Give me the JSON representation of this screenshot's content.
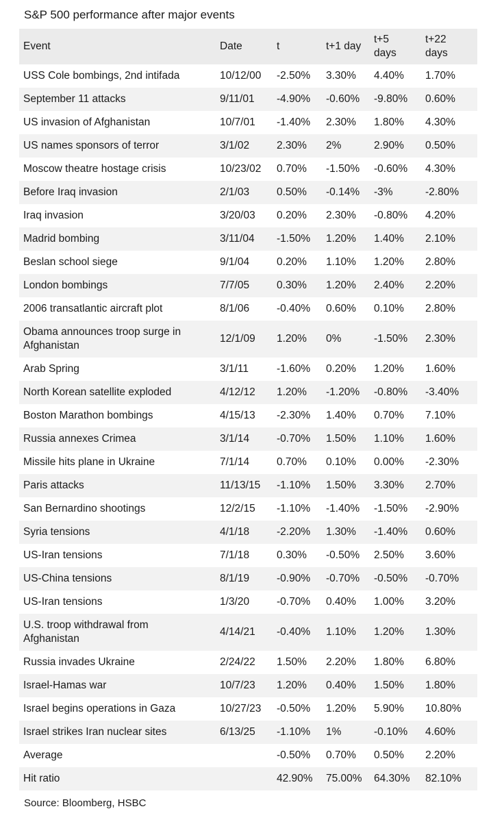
{
  "title": "S&P 500 performance after major events",
  "source_note": "Source: Bloomberg, HSBC",
  "colors": {
    "header_bg": "#ebebeb",
    "zebra_bg": "#f2f2f2",
    "row_bg": "#ffffff",
    "text": "#1a1a1a"
  },
  "chart_data": {
    "type": "table",
    "title": "S&P 500 performance after major events",
    "columns": [
      "Event",
      "Date",
      "t",
      "t+1 day",
      "t+5 days",
      "t+22 days"
    ],
    "rows": [
      [
        "USS Cole bombings, 2nd intifada",
        "10/12/00",
        "-2.50%",
        "3.30%",
        "4.40%",
        "1.70%"
      ],
      [
        "September 11 attacks",
        "9/11/01",
        "-4.90%",
        "-0.60%",
        "-9.80%",
        "0.60%"
      ],
      [
        "US invasion of Afghanistan",
        "10/7/01",
        "-1.40%",
        "2.30%",
        "1.80%",
        "4.30%"
      ],
      [
        "US names sponsors of terror",
        "3/1/02",
        "2.30%",
        "2%",
        "2.90%",
        "0.50%"
      ],
      [
        "Moscow theatre hostage crisis",
        "10/23/02",
        "0.70%",
        "-1.50%",
        "-0.60%",
        "4.30%"
      ],
      [
        "Before Iraq invasion",
        "2/1/03",
        "0.50%",
        "-0.14%",
        "-3%",
        "-2.80%"
      ],
      [
        "Iraq invasion",
        "3/20/03",
        "0.20%",
        "2.30%",
        "-0.80%",
        "4.20%"
      ],
      [
        "Madrid bombing",
        "3/11/04",
        "-1.50%",
        "1.20%",
        "1.40%",
        "2.10%"
      ],
      [
        "Beslan school siege",
        "9/1/04",
        "0.20%",
        "1.10%",
        "1.20%",
        "2.80%"
      ],
      [
        "London bombings",
        "7/7/05",
        "0.30%",
        "1.20%",
        "2.40%",
        "2.20%"
      ],
      [
        "2006 transatlantic aircraft plot",
        "8/1/06",
        "-0.40%",
        "0.60%",
        "0.10%",
        "2.80%"
      ],
      [
        "Obama announces troop surge in Afghanistan",
        "12/1/09",
        "1.20%",
        "0%",
        "-1.50%",
        "2.30%"
      ],
      [
        "Arab Spring",
        "3/1/11",
        "-1.60%",
        "0.20%",
        "1.20%",
        "1.60%"
      ],
      [
        "North Korean satellite exploded",
        "4/12/12",
        "1.20%",
        "-1.20%",
        "-0.80%",
        "-3.40%"
      ],
      [
        "Boston Marathon bombings",
        "4/15/13",
        "-2.30%",
        "1.40%",
        "0.70%",
        "7.10%"
      ],
      [
        "Russia annexes Crimea",
        "3/1/14",
        "-0.70%",
        "1.50%",
        "1.10%",
        "1.60%"
      ],
      [
        "Missile hits plane in Ukraine",
        "7/1/14",
        "0.70%",
        "0.10%",
        "0.00%",
        "-2.30%"
      ],
      [
        "Paris attacks",
        "11/13/15",
        "-1.10%",
        "1.50%",
        "3.30%",
        "2.70%"
      ],
      [
        "San Bernardino shootings",
        "12/2/15",
        "-1.10%",
        "-1.40%",
        "-1.50%",
        "-2.90%"
      ],
      [
        "Syria tensions",
        "4/1/18",
        "-2.20%",
        "1.30%",
        "-1.40%",
        "0.60%"
      ],
      [
        "US-Iran tensions",
        "7/1/18",
        "0.30%",
        "-0.50%",
        "2.50%",
        "3.60%"
      ],
      [
        "US-China tensions",
        "8/1/19",
        "-0.90%",
        "-0.70%",
        "-0.50%",
        "-0.70%"
      ],
      [
        "US-Iran tensions",
        "1/3/20",
        "-0.70%",
        "0.40%",
        "1.00%",
        "3.20%"
      ],
      [
        "U.S. troop withdrawal from Afghanistan",
        "4/14/21",
        "-0.40%",
        "1.10%",
        "1.20%",
        "1.30%"
      ],
      [
        "Russia invades Ukraine",
        "2/24/22",
        "1.50%",
        "2.20%",
        "1.80%",
        "6.80%"
      ],
      [
        "Israel-Hamas war",
        "10/7/23",
        "1.20%",
        "0.40%",
        "1.50%",
        "1.80%"
      ],
      [
        "Israel begins operations in Gaza",
        "10/27/23",
        "-0.50%",
        "1.20%",
        "5.90%",
        "10.80%"
      ],
      [
        "Israel strikes Iran nuclear sites",
        "6/13/25",
        "-1.10%",
        "1%",
        "-0.10%",
        "4.60%"
      ],
      [
        "Average",
        "",
        "-0.50%",
        "0.70%",
        "0.50%",
        "2.20%"
      ],
      [
        "Hit ratio",
        "",
        "42.90%",
        "75.00%",
        "64.30%",
        "82.10%"
      ]
    ]
  }
}
